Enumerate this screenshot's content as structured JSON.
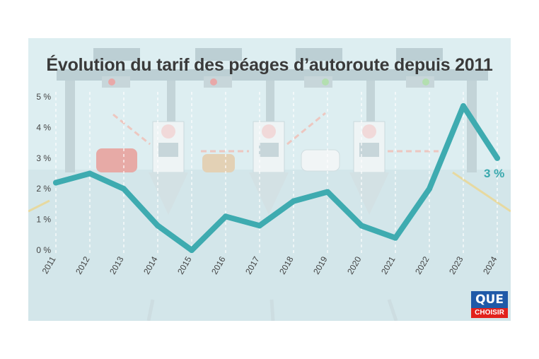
{
  "colors": {
    "line": "#3eabb0",
    "background": "#ddeef1",
    "label": "#38a8ad"
  },
  "chart_data": {
    "type": "line",
    "title": "Évolution du tarif des péages d’autoroute depuis 2011",
    "xlabel": "",
    "ylabel": "",
    "categories": [
      "2011",
      "2012",
      "2013",
      "2014",
      "2015",
      "2016",
      "2017",
      "2018",
      "2019",
      "2020",
      "2021",
      "2022",
      "2023",
      "2024"
    ],
    "series": [
      {
        "values": [
          2.2,
          2.5,
          2.0,
          0.8,
          0.0,
          1.1,
          0.8,
          1.6,
          1.9,
          0.8,
          0.4,
          2.0,
          4.7,
          3.0
        ]
      }
    ],
    "ylim": [
      0,
      5
    ],
    "yticks": [
      "0 %",
      "1 %",
      "2 %",
      "3 %",
      "4 %",
      "5 %"
    ],
    "grid": "vertical dashed",
    "last_value_label": "3 %"
  },
  "logo": {
    "top": "QUE",
    "bottom": "CHOISIR"
  }
}
